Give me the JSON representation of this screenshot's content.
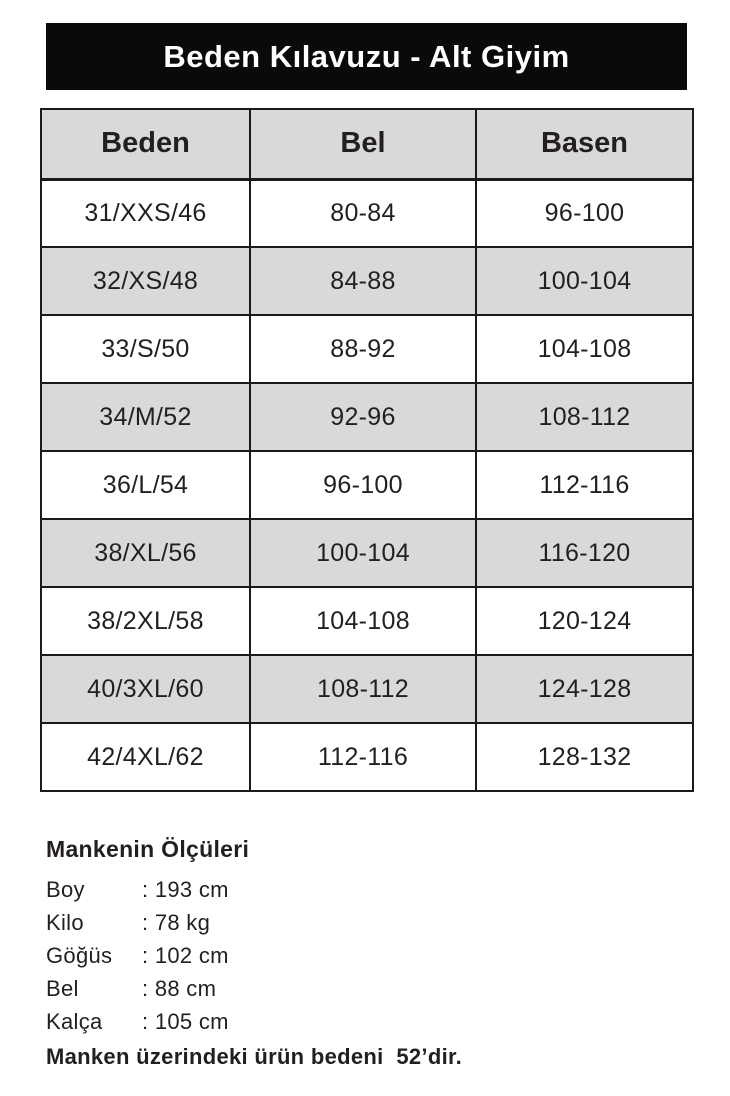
{
  "title": "Beden Kılavuzu - Alt Giyim",
  "colors": {
    "title_bar_bg": "#0a0a0a",
    "title_text": "#ffffff",
    "row_stripe": "#d9d9d9",
    "border": "#1a1a1a",
    "text": "#231f20"
  },
  "chart_data": {
    "type": "table",
    "title": "Beden Kılavuzu - Alt Giyim",
    "columns": [
      "Beden",
      "Bel",
      "Basen"
    ],
    "rows": [
      [
        "31/XXS/46",
        "80-84",
        "96-100"
      ],
      [
        "32/XS/48",
        "84-88",
        "100-104"
      ],
      [
        "33/S/50",
        "88-92",
        "104-108"
      ],
      [
        "34/M/52",
        "92-96",
        "108-112"
      ],
      [
        "36/L/54",
        "96-100",
        "112-116"
      ],
      [
        "38/XL/56",
        "100-104",
        "116-120"
      ],
      [
        "38/2XL/58",
        "104-108",
        "120-124"
      ],
      [
        "40/3XL/60",
        "108-112",
        "124-128"
      ],
      [
        "42/4XL/62",
        "112-116",
        "128-132"
      ]
    ]
  },
  "table": {
    "headers": [
      "Beden",
      "Bel",
      "Basen"
    ],
    "rows": [
      [
        "31/XXS/46",
        "80-84",
        "96-100"
      ],
      [
        "32/XS/48",
        "84-88",
        "100-104"
      ],
      [
        "33/S/50",
        "88-92",
        "104-108"
      ],
      [
        "34/M/52",
        "92-96",
        "108-112"
      ],
      [
        "36/L/54",
        "96-100",
        "112-116"
      ],
      [
        "38/XL/56",
        "100-104",
        "116-120"
      ],
      [
        "38/2XL/58",
        "104-108",
        "120-124"
      ],
      [
        "40/3XL/60",
        "108-112",
        "124-128"
      ],
      [
        "42/4XL/62",
        "112-116",
        "128-132"
      ]
    ]
  },
  "measurements": {
    "heading": "Mankenin Ölçüleri",
    "items": [
      {
        "label": "Boy",
        "value": ": 193 cm"
      },
      {
        "label": "Kilo",
        "value": ": 78 kg"
      },
      {
        "label": "Göğüs",
        "value": ": 102 cm"
      },
      {
        "label": "Bel",
        "value": ": 88 cm"
      },
      {
        "label": "Kalça",
        "value": ": 105 cm"
      }
    ],
    "note": "Manken üzerindeki ürün bedeni  52’dir."
  }
}
